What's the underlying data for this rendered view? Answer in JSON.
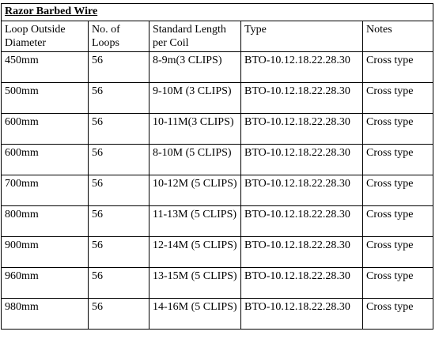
{
  "title": "Razor Barbed Wire",
  "headers": [
    "Loop Outside Diameter",
    "No. of Loops",
    "Standard Length per Coil",
    "Type",
    "Notes"
  ],
  "rows": [
    {
      "diameter": "450mm",
      "loops": "56",
      "length": "8-9m(3  CLIPS)",
      "type": "BTO-10.12.18.22.28.30",
      "notes": "Cross type"
    },
    {
      "diameter": "500mm",
      "loops": "56",
      "length": "9-10M (3 CLIPS)",
      "type": "BTO-10.12.18.22.28.30",
      "notes": "Cross type"
    },
    {
      "diameter": "600mm",
      "loops": "56",
      "length": "10-11M(3 CLIPS)",
      "type": "BTO-10.12.18.22.28.30",
      "notes": "Cross type"
    },
    {
      "diameter": "600mm",
      "loops": "56",
      "length": "8-10M (5 CLIPS)",
      "type": "BTO-10.12.18.22.28.30",
      "notes": "Cross type"
    },
    {
      "diameter": "700mm",
      "loops": "56",
      "length": "10-12M (5 CLIPS)",
      "type": "BTO-10.12.18.22.28.30",
      "notes": "Cross type"
    },
    {
      "diameter": "800mm",
      "loops": "56",
      "length": "11-13M (5 CLIPS)",
      "type": "BTO-10.12.18.22.28.30",
      "notes": "Cross type"
    },
    {
      "diameter": "900mm",
      "loops": "56",
      "length": "12-14M (5 CLIPS)",
      "type": "BTO-10.12.18.22.28.30",
      "notes": "Cross type"
    },
    {
      "diameter": "960mm",
      "loops": "56",
      "length": "13-15M (5 CLIPS)",
      "type": "BTO-10.12.18.22.28.30",
      "notes": "Cross type"
    },
    {
      "diameter": "980mm",
      "loops": "56",
      "length": "14-16M (5 CLIPS)",
      "type": "BTO-10.12.18.22.28.30",
      "notes": "Cross type"
    }
  ]
}
